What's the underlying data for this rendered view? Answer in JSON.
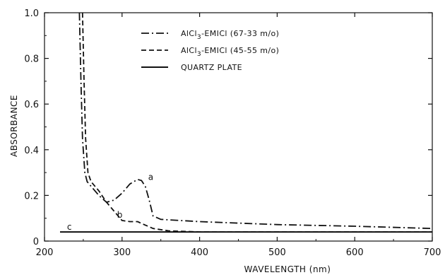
{
  "chart_data": {
    "type": "line",
    "xlabel": "WAVELENGTH (nm)",
    "ylabel": "ABSORBANCE",
    "xlim": [
      200,
      700
    ],
    "ylim": [
      0,
      1.0
    ],
    "x_ticks": [
      200,
      300,
      400,
      500,
      600,
      700
    ],
    "x_tick_labels": [
      "200",
      "300",
      "400",
      "500",
      "600",
      "700"
    ],
    "y_ticks": [
      0,
      0.2,
      0.4,
      0.6,
      0.8,
      1.0
    ],
    "y_tick_labels": [
      "0",
      "0.2",
      "0.4",
      "0.6",
      "0.8",
      "1.0"
    ],
    "grid": false,
    "legend_position": "top-center",
    "series": [
      {
        "name": "AlCl3-EMICl (67-33 m/o)",
        "legend_name": "AlCl",
        "legend_sub": "3",
        "legend_rest": "-EMICl (67-33 m/o)",
        "curve_label": "a",
        "line_style": "dash-dot",
        "x": [
          245,
          247,
          249,
          252,
          255,
          260,
          270,
          280,
          290,
          300,
          310,
          320,
          325,
          330,
          335,
          340,
          350,
          400,
          500,
          600,
          700
        ],
        "y": [
          1.0,
          0.7,
          0.45,
          0.3,
          0.26,
          0.24,
          0.2,
          0.17,
          0.18,
          0.21,
          0.25,
          0.27,
          0.265,
          0.24,
          0.18,
          0.11,
          0.095,
          0.085,
          0.072,
          0.065,
          0.055
        ]
      },
      {
        "name": "AlCl3-EMICl (45-55 m/o)",
        "legend_name": "AlCl",
        "legend_sub": "3",
        "legend_rest": "-EMICl (45-55 m/o)",
        "curve_label": "b",
        "line_style": "dashed",
        "x": [
          249,
          251,
          253,
          256,
          260,
          270,
          280,
          290,
          300,
          310,
          320,
          330,
          340,
          360,
          400,
          500,
          600,
          700
        ],
        "y": [
          1.0,
          0.7,
          0.45,
          0.3,
          0.26,
          0.22,
          0.17,
          0.13,
          0.09,
          0.085,
          0.085,
          0.07,
          0.055,
          0.045,
          0.04,
          0.04,
          0.04,
          0.04
        ]
      },
      {
        "name": "QUARTZ PLATE",
        "legend_name": "QUARTZ PLATE",
        "legend_sub": "",
        "legend_rest": "",
        "curve_label": "c",
        "line_style": "solid",
        "x": [
          220,
          700
        ],
        "y": [
          0.04,
          0.04
        ]
      }
    ]
  }
}
